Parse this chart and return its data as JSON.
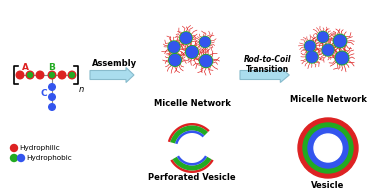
{
  "background_color": "#ffffff",
  "arrow_color": "#AADDEE",
  "arrow_edge_color": "#88BBCC",
  "text_assembly": "Assembly",
  "text_rod_to_coil": "Rod-to-Coil",
  "text_transition": "Transition",
  "text_micelle1": "Micelle Network",
  "text_micelle2": "Micelle Network",
  "text_perforated": "Perforated Vesicle",
  "text_vesicle": "Vesicle",
  "label_A": "A",
  "label_B": "B",
  "label_C": "C",
  "label_n": "n",
  "label_hydrophilic": "Hydrophilic",
  "label_hydrophobic": "Hydrophobic",
  "color_red": "#DD2222",
  "color_green": "#22AA22",
  "color_blue": "#3355EE",
  "color_text": "#000000",
  "color_bracket": "#000000",
  "micelle_core_color": "#3355EE",
  "micelle_spike_color": "#DD2222",
  "micelle_green_ring": "#22AA22",
  "vesicle_outer_color": "#DD2222",
  "vesicle_mid_color": "#22AA22",
  "vesicle_inner_color": "#3355EE"
}
